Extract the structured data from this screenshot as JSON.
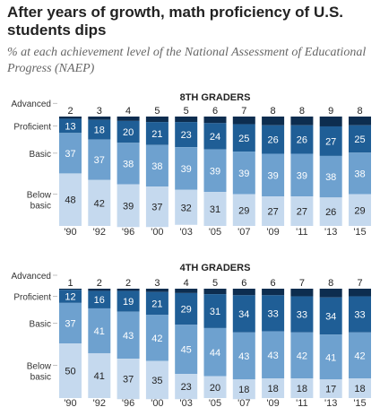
{
  "title": "After years of growth, math proficiency of U.S. students dips",
  "subtitle": "% at each achievement level of the National Assessment of Educational Progress (NAEP)",
  "colors": {
    "advanced": "#0d2d4f",
    "proficient": "#1f5e96",
    "basic": "#6ea1cf",
    "below_basic": "#c5d9ee"
  },
  "chart_data": [
    {
      "type": "bar",
      "stacked": true,
      "title": "8TH GRADERS",
      "categories": [
        "'90",
        "'92",
        "'96",
        "'00",
        "'03",
        "'05",
        "'07",
        "'09",
        "'11",
        "'13",
        "'15"
      ],
      "series": [
        {
          "name": "Advanced",
          "values": [
            2,
            3,
            4,
            5,
            5,
            6,
            7,
            8,
            8,
            9,
            8
          ]
        },
        {
          "name": "Proficient",
          "values": [
            13,
            18,
            20,
            21,
            23,
            24,
            25,
            26,
            26,
            27,
            25
          ]
        },
        {
          "name": "Basic",
          "values": [
            37,
            37,
            38,
            38,
            39,
            39,
            39,
            39,
            39,
            38,
            38
          ]
        },
        {
          "name": "Below basic",
          "values": [
            48,
            42,
            39,
            37,
            32,
            31,
            29,
            27,
            27,
            26,
            29
          ]
        }
      ],
      "row_labels": [
        "Advanced",
        "Proficient",
        "Basic",
        "Below basic"
      ]
    },
    {
      "type": "bar",
      "stacked": true,
      "title": "4TH GRADERS",
      "categories": [
        "'90",
        "'92",
        "'96",
        "'00",
        "'03",
        "'05",
        "'07",
        "'09",
        "'11",
        "'13",
        "'15"
      ],
      "series": [
        {
          "name": "Advanced",
          "values": [
            1,
            2,
            2,
            3,
            4,
            5,
            6,
            6,
            7,
            8,
            7
          ]
        },
        {
          "name": "Proficient",
          "values": [
            12,
            16,
            19,
            21,
            29,
            31,
            34,
            33,
            33,
            34,
            33
          ]
        },
        {
          "name": "Basic",
          "values": [
            37,
            41,
            43,
            42,
            45,
            44,
            43,
            43,
            42,
            41,
            42
          ]
        },
        {
          "name": "Below basic",
          "values": [
            50,
            41,
            37,
            35,
            23,
            20,
            18,
            18,
            18,
            17,
            18
          ]
        }
      ],
      "row_labels": [
        "Advanced",
        "Proficient",
        "Basic",
        "Below basic"
      ]
    }
  ]
}
